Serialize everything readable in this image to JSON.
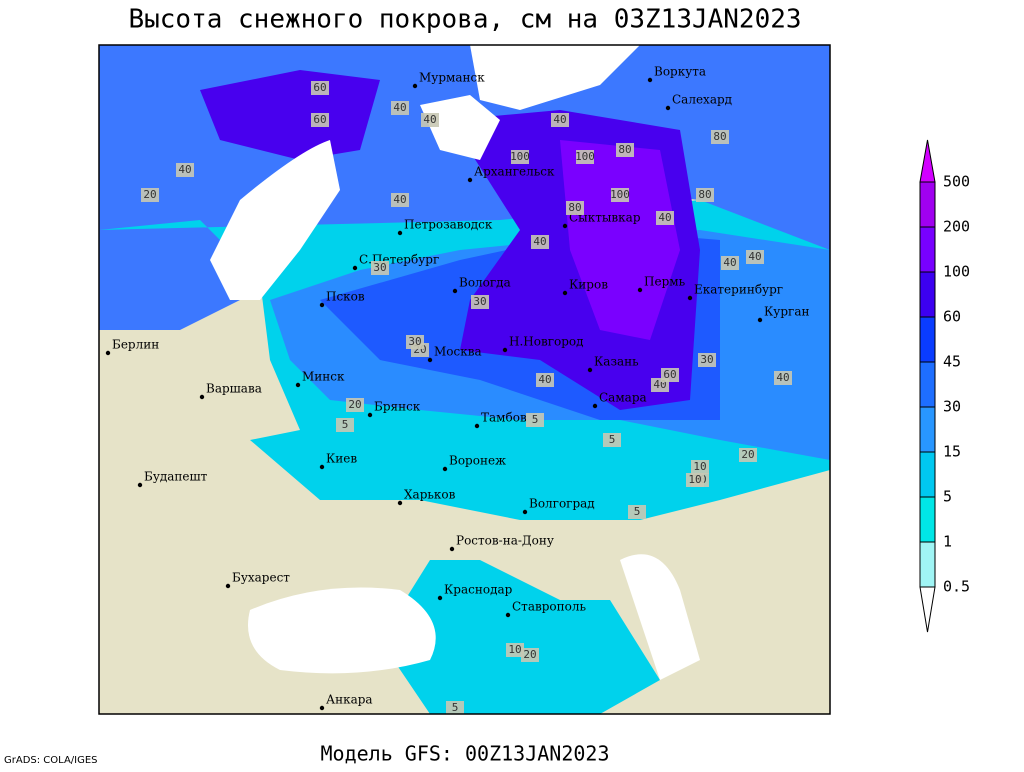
{
  "title": "Высота снежного покрова, см на 03Z13JAN2023",
  "footer": {
    "credit": "GrADS: COLA/IGES",
    "model": "Модель GFS: 00Z13JAN2023"
  },
  "cities": [
    "Мурманск",
    "Воркута",
    "Салехард",
    "Архангельск",
    "Сыктывкар",
    "Петрозаводск",
    "С.Петербург",
    "Вологда",
    "Киров",
    "Пермь",
    "Екатеринбург",
    "Курган",
    "Псков",
    "Н.Новгород",
    "Москва",
    "Казань",
    "Берлин",
    "Минск",
    "Варшава",
    "Самара",
    "Брянск",
    "Тамбов",
    "Киев",
    "Воронеж",
    "Будапешт",
    "Харьков",
    "Волгоград",
    "Ростов-на-Дону",
    "Бухарест",
    "Краснодар",
    "Ставрополь",
    "Анкара"
  ],
  "contour_labels": [
    60,
    40,
    40,
    40,
    20,
    40,
    40,
    60,
    100,
    100,
    80,
    100,
    80,
    80,
    40,
    40,
    40,
    40,
    30,
    20,
    30,
    30,
    20,
    40,
    40,
    30,
    5,
    5,
    5,
    20,
    10,
    30,
    10,
    5,
    20,
    10,
    5,
    40,
    60,
    80
  ],
  "colorbar": {
    "levels": [
      0.5,
      1,
      5,
      15,
      30,
      45,
      60,
      100,
      200,
      500
    ],
    "colors": [
      "#ffffff",
      "#a0f5f5",
      "#00e6e6",
      "#00c8f0",
      "#2896ff",
      "#1e6eff",
      "#0a3cff",
      "#3c00f0",
      "#7800ff",
      "#a000f0",
      "#d200ff"
    ]
  }
}
